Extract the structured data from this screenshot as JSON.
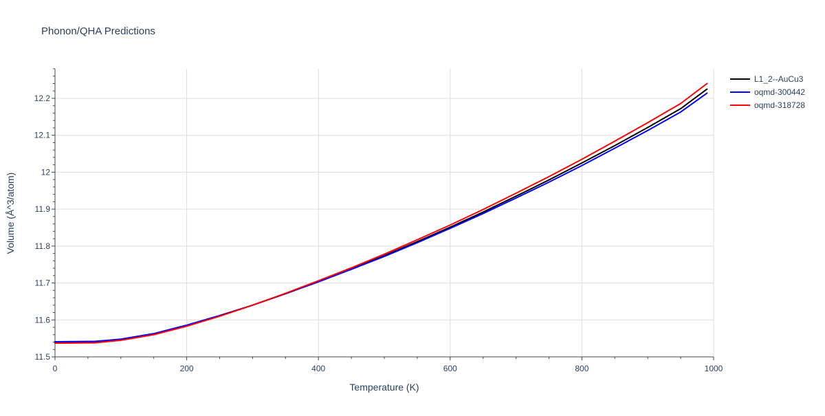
{
  "chart_data": {
    "type": "line",
    "title": "Phonon/QHA Predictions",
    "xlabel": "Temperature (K)",
    "ylabel": "Volume (Å^3/atom)",
    "xlim": [
      0,
      1000
    ],
    "ylim": [
      11.5,
      12.28
    ],
    "x_ticks": [
      0,
      200,
      400,
      600,
      800,
      1000
    ],
    "x_tick_labels": [
      "0",
      "200",
      "400",
      "600",
      "800",
      "1000"
    ],
    "y_ticks": [
      11.5,
      11.6,
      11.7,
      11.8,
      11.9,
      12.0,
      12.1,
      12.2
    ],
    "y_tick_labels": [
      "11.5",
      "11.6",
      "11.7",
      "11.8",
      "11.9",
      "12",
      "12.1",
      "12.2"
    ],
    "grid": true,
    "legend_position": "top-right",
    "series": [
      {
        "name": "L1_2--AuCu3",
        "color": "#000000",
        "x": [
          0,
          60,
          100,
          150,
          200,
          250,
          300,
          350,
          400,
          450,
          500,
          550,
          600,
          650,
          700,
          750,
          800,
          850,
          900,
          950,
          990
        ],
        "y": [
          11.539,
          11.54,
          11.547,
          11.562,
          11.585,
          11.611,
          11.64,
          11.671,
          11.704,
          11.738,
          11.774,
          11.812,
          11.851,
          11.892,
          11.935,
          11.979,
          12.025,
          12.072,
          12.121,
          12.172,
          12.225
        ]
      },
      {
        "name": "oqmd-300442",
        "color": "#0000ff",
        "x": [
          0,
          60,
          100,
          150,
          200,
          250,
          300,
          350,
          400,
          450,
          500,
          550,
          600,
          650,
          700,
          750,
          800,
          850,
          900,
          950,
          990
        ],
        "y": [
          11.541,
          11.542,
          11.548,
          11.563,
          11.586,
          11.612,
          11.64,
          11.671,
          11.703,
          11.737,
          11.772,
          11.809,
          11.848,
          11.888,
          11.93,
          11.973,
          12.018,
          12.065,
          12.113,
          12.163,
          12.214
        ]
      },
      {
        "name": "oqmd-318728",
        "color": "#ff0000",
        "x": [
          0,
          60,
          100,
          150,
          200,
          250,
          300,
          350,
          400,
          450,
          500,
          550,
          600,
          650,
          700,
          750,
          800,
          850,
          900,
          950,
          990
        ],
        "y": [
          11.537,
          11.538,
          11.545,
          11.56,
          11.583,
          11.61,
          11.64,
          11.672,
          11.706,
          11.741,
          11.778,
          11.817,
          11.857,
          11.899,
          11.943,
          11.988,
          12.035,
          12.084,
          12.134,
          12.186,
          12.24
        ]
      }
    ]
  }
}
